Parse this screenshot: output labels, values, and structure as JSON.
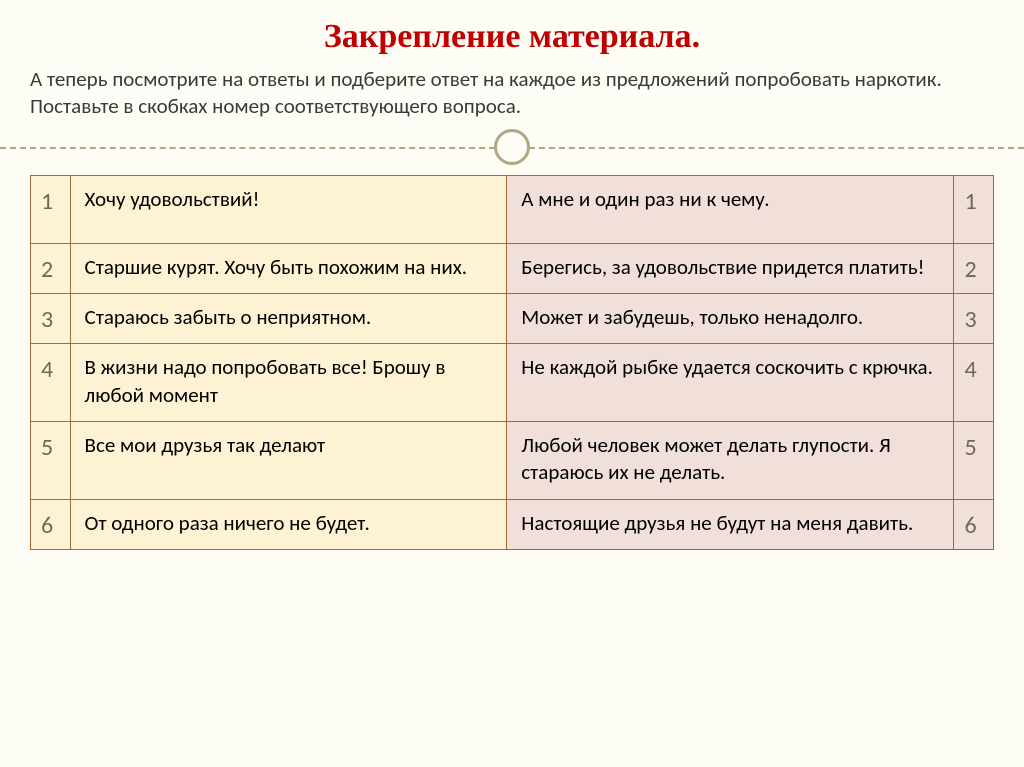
{
  "title": "Закрепление материала.",
  "subtitle": "А теперь посмотрите на ответы и подберите ответ на каждое из предложений попробовать наркотик. Поставьте в скобках номер соответствующего вопроса.",
  "table": {
    "row_numbers": [
      "1",
      "2",
      "3",
      "4",
      "5",
      "6"
    ],
    "left_cells": [
      "Хочу удовольствий!",
      "Старшие курят. Хочу быть похожим на них.",
      " Стараюсь  забыть о неприятном.",
      "В жизни надо попробовать все! Брошу в любой момент",
      "Все мои друзья так делают",
      "От одного раза ничего не будет."
    ],
    "right_cells": [
      "А мне и один раз ни к чему.",
      "Берегись, за удовольствие придется платить!",
      "Может и забудешь, только ненадолго.",
      "Не каждой рыбке удается соскочить с крючка.",
      "Любой человек может делать глупости. Я стараюсь их не делать.",
      "Настоящие друзья не будут на меня давить."
    ]
  },
  "colors": {
    "title_color": "#c00000",
    "left_bg": "#fdf3d4",
    "right_bg": "#f1e0da",
    "border": "#9e6b3a",
    "page_bg": "#fdfdf6",
    "divider": "#b0a880"
  }
}
